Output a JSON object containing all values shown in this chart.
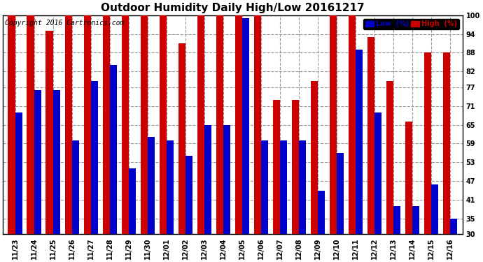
{
  "title": "Outdoor Humidity Daily High/Low 20161217",
  "copyright": "Copyright 2016 Cartronics.com",
  "legend_low": "Low  (%)",
  "legend_high": "High  (%)",
  "dates": [
    "11/23",
    "11/24",
    "11/25",
    "11/26",
    "11/27",
    "11/28",
    "11/29",
    "11/30",
    "12/01",
    "12/02",
    "12/03",
    "12/04",
    "12/05",
    "12/06",
    "12/07",
    "12/08",
    "12/09",
    "12/10",
    "12/11",
    "12/12",
    "12/13",
    "12/14",
    "12/15",
    "12/16"
  ],
  "high": [
    100,
    100,
    95,
    100,
    100,
    100,
    100,
    100,
    100,
    91,
    100,
    100,
    100,
    100,
    73,
    73,
    79,
    100,
    100,
    93,
    79,
    66,
    88,
    88
  ],
  "low": [
    69,
    76,
    76,
    60,
    79,
    84,
    51,
    61,
    60,
    55,
    65,
    65,
    99,
    60,
    60,
    60,
    44,
    56,
    89,
    69,
    39,
    39,
    46,
    35
  ],
  "ylim_min": 30,
  "ylim_max": 100,
  "yticks": [
    30,
    35,
    41,
    47,
    53,
    59,
    65,
    71,
    77,
    82,
    88,
    94,
    100
  ],
  "bar_width": 0.38,
  "low_color": "#0000cc",
  "high_color": "#cc0000",
  "bg_color": "#ffffff",
  "grid_color": "#999999",
  "title_fontsize": 11,
  "tick_fontsize": 7,
  "copyright_fontsize": 7
}
